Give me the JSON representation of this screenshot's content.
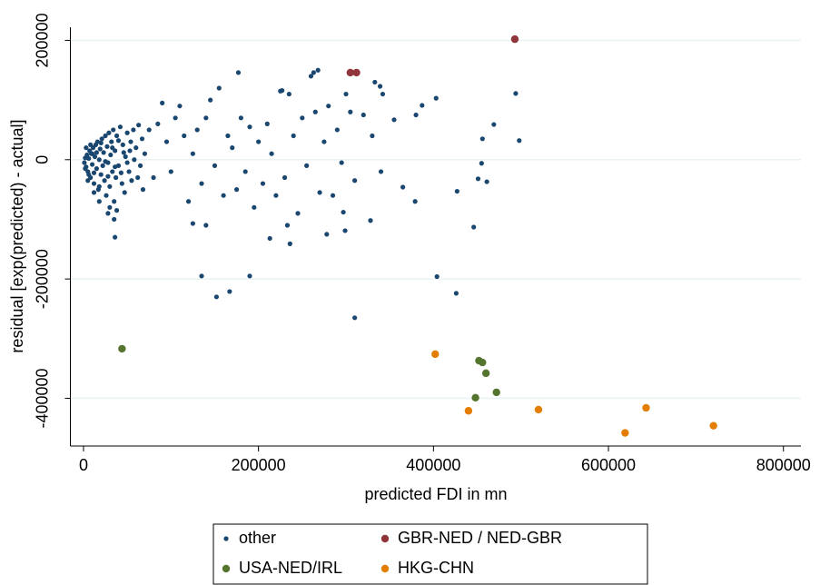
{
  "chart_data": {
    "type": "scatter",
    "xlabel": "predicted FDI in mn",
    "ylabel": "residual [exp(predicted) - actual]",
    "xlim": [
      -15000,
      820000
    ],
    "xticks": [
      0,
      200000,
      400000,
      600000,
      800000
    ],
    "ylim": [
      -480000,
      222000
    ],
    "yticks": [
      -400000,
      -200000,
      0,
      200000
    ],
    "grid": true,
    "legend": "bottom",
    "series": [
      {
        "name": "other",
        "color": "#1a476f",
        "x": [
          1000,
          2000,
          3000,
          4000,
          5000,
          6000,
          7000,
          8000,
          9000,
          10000,
          11000,
          12000,
          13000,
          14000,
          15000,
          16000,
          17000,
          18000,
          19000,
          20000,
          21000,
          22000,
          23000,
          24000,
          25000,
          26000,
          27000,
          28000,
          29000,
          30000,
          31000,
          32000,
          33000,
          34000,
          35000,
          36000,
          37000,
          38000,
          40000,
          42000,
          44000,
          45000,
          47000,
          48000,
          50000,
          52000,
          54000,
          55000,
          57000,
          58000,
          60000,
          62000,
          63000,
          65000,
          67000,
          68000,
          70000,
          3000,
          5000,
          8000,
          12000,
          15000,
          18000,
          20000,
          25000,
          28000,
          33000,
          36000,
          40000,
          43000,
          46000,
          50000,
          53000,
          2000,
          6000,
          10000,
          30000,
          28000,
          35000,
          36000,
          18000,
          12000,
          38000,
          75000,
          80000,
          85000,
          90000,
          95000,
          100000,
          105000,
          110000,
          115000,
          120000,
          125000,
          130000,
          135000,
          140000,
          145000,
          150000,
          155000,
          160000,
          165000,
          170000,
          175000,
          180000,
          185000,
          190000,
          195000,
          200000,
          205000,
          210000,
          215000,
          220000,
          225000,
          230000,
          235000,
          240000,
          245000,
          250000,
          255000,
          260000,
          265000,
          270000,
          275000,
          280000,
          285000,
          290000,
          295000,
          300000,
          305000,
          310000,
          320000,
          330000,
          340000,
          125000,
          140000,
          177000,
          263000,
          268000,
          227000,
          339000,
          333000,
          342000,
          403000,
          494000,
          498000,
          469000,
          456000,
          387000,
          380000,
          355000,
          455000,
          461000,
          451000,
          427000,
          446000,
          365000,
          379000,
          404000,
          426000,
          310000,
          190000,
          135000,
          152000,
          167000,
          213000,
          236000,
          278000,
          299000,
          328000,
          297000,
          233000
        ],
        "values": [
          -5000,
          3000,
          -12000,
          8000,
          -20000,
          2000,
          15000,
          -30000,
          10000,
          -8000,
          20000,
          -40000,
          5000,
          25000,
          -15000,
          30000,
          -50000,
          0,
          18000,
          -25000,
          35000,
          -10000,
          12000,
          -35000,
          40000,
          -60000,
          22000,
          -5000,
          45000,
          -45000,
          8000,
          30000,
          -20000,
          50000,
          -70000,
          15000,
          -30000,
          40000,
          -10000,
          55000,
          -40000,
          25000,
          -55000,
          5000,
          45000,
          -20000,
          30000,
          -35000,
          50000,
          0,
          20000,
          -30000,
          58000,
          -10000,
          35000,
          -50000,
          10000,
          20000,
          -35000,
          25000,
          -22000,
          12000,
          -45000,
          28000,
          -3000,
          -28000,
          20000,
          -12000,
          32000,
          -22000,
          12000,
          -5000,
          15000,
          -15000,
          -25000,
          10000,
          -80000,
          -90000,
          -100000,
          -130000,
          -70000,
          -55000,
          -85000,
          50000,
          -30000,
          60000,
          95000,
          30000,
          -20000,
          70000,
          90000,
          40000,
          -70000,
          10000,
          50000,
          -40000,
          70000,
          100000,
          -10000,
          120000,
          -60000,
          40000,
          20000,
          -50000,
          70000,
          -20000,
          55000,
          -80000,
          30000,
          -40000,
          60000,
          10000,
          -60000,
          115000,
          -30000,
          110000,
          40000,
          -90000,
          70000,
          -10000,
          140000,
          80000,
          -55000,
          30000,
          90000,
          -60000,
          50000,
          -5000,
          110000,
          80000,
          -35000,
          75000,
          40000,
          -20000,
          -107000,
          -110000,
          146000,
          146000,
          150000,
          116000,
          123000,
          130000,
          110000,
          103000,
          111000,
          32000,
          59000,
          35000,
          91000,
          75000,
          67000,
          -6000,
          -37000,
          -32000,
          -53000,
          -113000,
          -46000,
          -70000,
          -196000,
          -224000,
          -265000,
          -195000,
          -195000,
          -230000,
          -221000,
          -132000,
          -141000,
          -125000,
          -119000,
          -102000,
          -88000,
          -110000
        ]
      },
      {
        "name": "GBR-NED / NED-GBR",
        "color": "#90353b",
        "x": [
          305000,
          312000,
          493000
        ],
        "values": [
          146000,
          146000,
          202000
        ]
      },
      {
        "name": "USA-NED/IRL",
        "color": "#55752f",
        "x": [
          44000,
          452000,
          456000,
          460000,
          472000,
          448000
        ],
        "values": [
          -317000,
          -337000,
          -340000,
          -358000,
          -390000,
          -399000
        ]
      },
      {
        "name": "HKG-CHN",
        "color": "#e37e00",
        "x": [
          402000,
          440000,
          520000,
          619000,
          643000,
          720000
        ],
        "values": [
          -326000,
          -421000,
          -419000,
          -458000,
          -416000,
          -446000
        ]
      }
    ]
  }
}
